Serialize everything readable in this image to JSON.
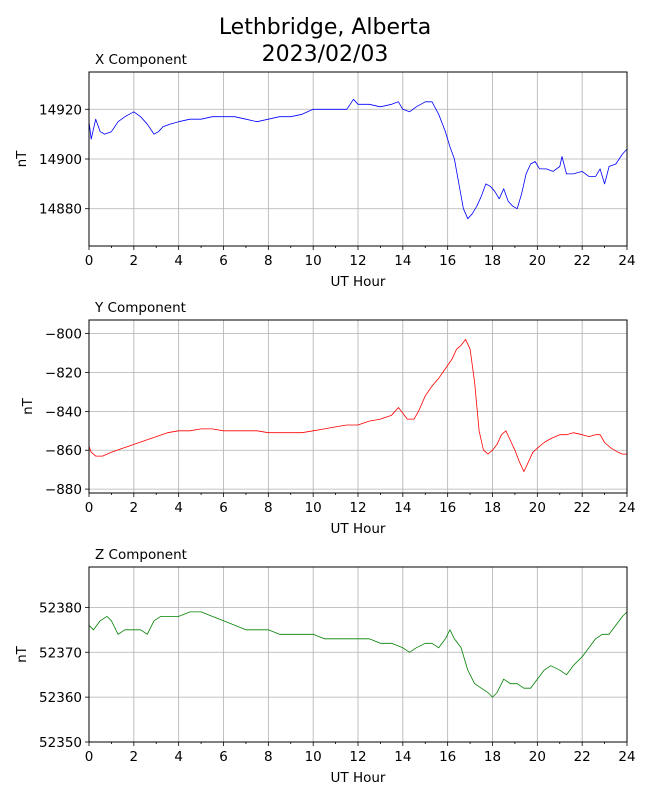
{
  "figure": {
    "title_line1": "Lethbridge, Alberta",
    "title_line2": "2023/02/03"
  },
  "chart_data": [
    {
      "type": "line",
      "title": "X Component",
      "xlabel": "UT Hour",
      "ylabel": "nT",
      "xlim": [
        0,
        24
      ],
      "ylim": [
        14865,
        14935
      ],
      "xticks": [
        0,
        2,
        4,
        6,
        8,
        10,
        12,
        14,
        16,
        18,
        20,
        22,
        24
      ],
      "yticks": [
        14880,
        14900,
        14920
      ],
      "grid": true,
      "color": "#0000ff",
      "x": [
        0,
        0.1,
        0.3,
        0.5,
        0.7,
        1.0,
        1.3,
        1.6,
        2.0,
        2.3,
        2.6,
        2.9,
        3.1,
        3.3,
        3.6,
        4.0,
        4.5,
        5.0,
        5.5,
        6.0,
        6.5,
        7.0,
        7.5,
        8.0,
        8.5,
        9.0,
        9.5,
        10.0,
        10.5,
        11.0,
        11.5,
        11.8,
        12.0,
        12.5,
        13.0,
        13.5,
        13.8,
        14.0,
        14.3,
        14.6,
        15.0,
        15.3,
        15.6,
        15.9,
        16.1,
        16.3,
        16.5,
        16.7,
        16.9,
        17.1,
        17.3,
        17.5,
        17.7,
        17.9,
        18.1,
        18.3,
        18.5,
        18.7,
        18.9,
        19.1,
        19.3,
        19.5,
        19.7,
        19.9,
        20.1,
        20.4,
        20.7,
        21.0,
        21.1,
        21.3,
        21.6,
        22.0,
        22.3,
        22.6,
        22.8,
        22.9,
        23.0,
        23.2,
        23.5,
        23.8,
        24.0
      ],
      "y": [
        14915,
        14908,
        14916,
        14911,
        14910,
        14911,
        14915,
        14917,
        14919,
        14917,
        14914,
        14910,
        14911,
        14913,
        14914,
        14915,
        14916,
        14916,
        14917,
        14917,
        14917,
        14916,
        14915,
        14916,
        14917,
        14917,
        14918,
        14920,
        14920,
        14920,
        14920,
        14924,
        14922,
        14922,
        14921,
        14922,
        14923,
        14920,
        14919,
        14921,
        14923,
        14923,
        14918,
        14911,
        14905,
        14900,
        14890,
        14880,
        14876,
        14878,
        14881,
        14885,
        14890,
        14889,
        14887,
        14884,
        14888,
        14883,
        14881,
        14880,
        14886,
        14894,
        14898,
        14899,
        14896,
        14896,
        14895,
        14897,
        14901,
        14894,
        14894,
        14895,
        14893,
        14893,
        14896,
        14893,
        14890,
        14897,
        14898,
        14902,
        14904
      ]
    },
    {
      "type": "line",
      "title": "Y Component",
      "xlabel": "UT Hour",
      "ylabel": "nT",
      "xlim": [
        0,
        24
      ],
      "ylim": [
        -882,
        -793
      ],
      "xticks": [
        0,
        2,
        4,
        6,
        8,
        10,
        12,
        14,
        16,
        18,
        20,
        22,
        24
      ],
      "yticks": [
        -800,
        -820,
        -840,
        -860,
        -880
      ],
      "grid": true,
      "color": "#ff0000",
      "x": [
        0,
        0.1,
        0.3,
        0.6,
        1.0,
        1.5,
        2.0,
        2.5,
        3.0,
        3.5,
        4.0,
        4.5,
        5.0,
        5.5,
        6.0,
        6.5,
        7.0,
        7.5,
        8.0,
        8.5,
        9.0,
        9.5,
        10.0,
        10.5,
        11.0,
        11.5,
        12.0,
        12.5,
        13.0,
        13.5,
        13.8,
        14.0,
        14.2,
        14.5,
        14.7,
        15.0,
        15.3,
        15.6,
        15.9,
        16.2,
        16.4,
        16.6,
        16.8,
        17.0,
        17.2,
        17.4,
        17.6,
        17.8,
        18.0,
        18.2,
        18.4,
        18.6,
        18.8,
        19.0,
        19.2,
        19.4,
        19.6,
        19.8,
        20.0,
        20.3,
        20.6,
        21.0,
        21.3,
        21.6,
        22.0,
        22.3,
        22.6,
        22.8,
        23.0,
        23.3,
        23.6,
        23.8,
        24.0
      ],
      "y": [
        -858,
        -861,
        -863,
        -863,
        -861,
        -859,
        -857,
        -855,
        -853,
        -851,
        -850,
        -850,
        -849,
        -849,
        -850,
        -850,
        -850,
        -850,
        -851,
        -851,
        -851,
        -851,
        -850,
        -849,
        -848,
        -847,
        -847,
        -845,
        -844,
        -842,
        -838,
        -841,
        -844,
        -844,
        -840,
        -832,
        -827,
        -823,
        -818,
        -813,
        -808,
        -806,
        -803,
        -808,
        -825,
        -850,
        -860,
        -862,
        -860,
        -857,
        -852,
        -850,
        -855,
        -860,
        -866,
        -871,
        -866,
        -861,
        -859,
        -856,
        -854,
        -852,
        -852,
        -851,
        -852,
        -853,
        -852,
        -852,
        -856,
        -859,
        -861,
        -862,
        -862
      ]
    },
    {
      "type": "line",
      "title": "Z Component",
      "xlabel": "UT Hour",
      "ylabel": "nT",
      "xlim": [
        0,
        24
      ],
      "ylim": [
        52350,
        52389
      ],
      "xticks": [
        0,
        2,
        4,
        6,
        8,
        10,
        12,
        14,
        16,
        18,
        20,
        22,
        24
      ],
      "yticks": [
        52350,
        52360,
        52370,
        52380
      ],
      "grid": true,
      "color": "#008000",
      "x": [
        0,
        0.2,
        0.5,
        0.8,
        1.0,
        1.3,
        1.6,
        2.0,
        2.3,
        2.6,
        2.9,
        3.2,
        3.5,
        4.0,
        4.5,
        5.0,
        5.5,
        6.0,
        6.5,
        7.0,
        7.5,
        8.0,
        8.5,
        9.0,
        9.5,
        10.0,
        10.5,
        11.0,
        11.5,
        12.0,
        12.5,
        13.0,
        13.5,
        14.0,
        14.3,
        14.6,
        15.0,
        15.3,
        15.6,
        15.9,
        16.1,
        16.3,
        16.6,
        16.9,
        17.2,
        17.5,
        17.8,
        18.0,
        18.2,
        18.5,
        18.8,
        19.1,
        19.4,
        19.7,
        20.0,
        20.3,
        20.6,
        21.0,
        21.3,
        21.6,
        22.0,
        22.3,
        22.6,
        22.9,
        23.2,
        23.5,
        23.8,
        24.0
      ],
      "y": [
        52376,
        52375,
        52377,
        52378,
        52377,
        52374,
        52375,
        52375,
        52375,
        52374,
        52377,
        52378,
        52378,
        52378,
        52379,
        52379,
        52378,
        52377,
        52376,
        52375,
        52375,
        52375,
        52374,
        52374,
        52374,
        52374,
        52373,
        52373,
        52373,
        52373,
        52373,
        52372,
        52372,
        52371,
        52370,
        52371,
        52372,
        52372,
        52371,
        52373,
        52375,
        52373,
        52371,
        52366,
        52363,
        52362,
        52361,
        52360,
        52361,
        52364,
        52363,
        52363,
        52362,
        52362,
        52364,
        52366,
        52367,
        52366,
        52365,
        52367,
        52369,
        52371,
        52373,
        52374,
        52374,
        52376,
        52378,
        52379
      ]
    }
  ]
}
